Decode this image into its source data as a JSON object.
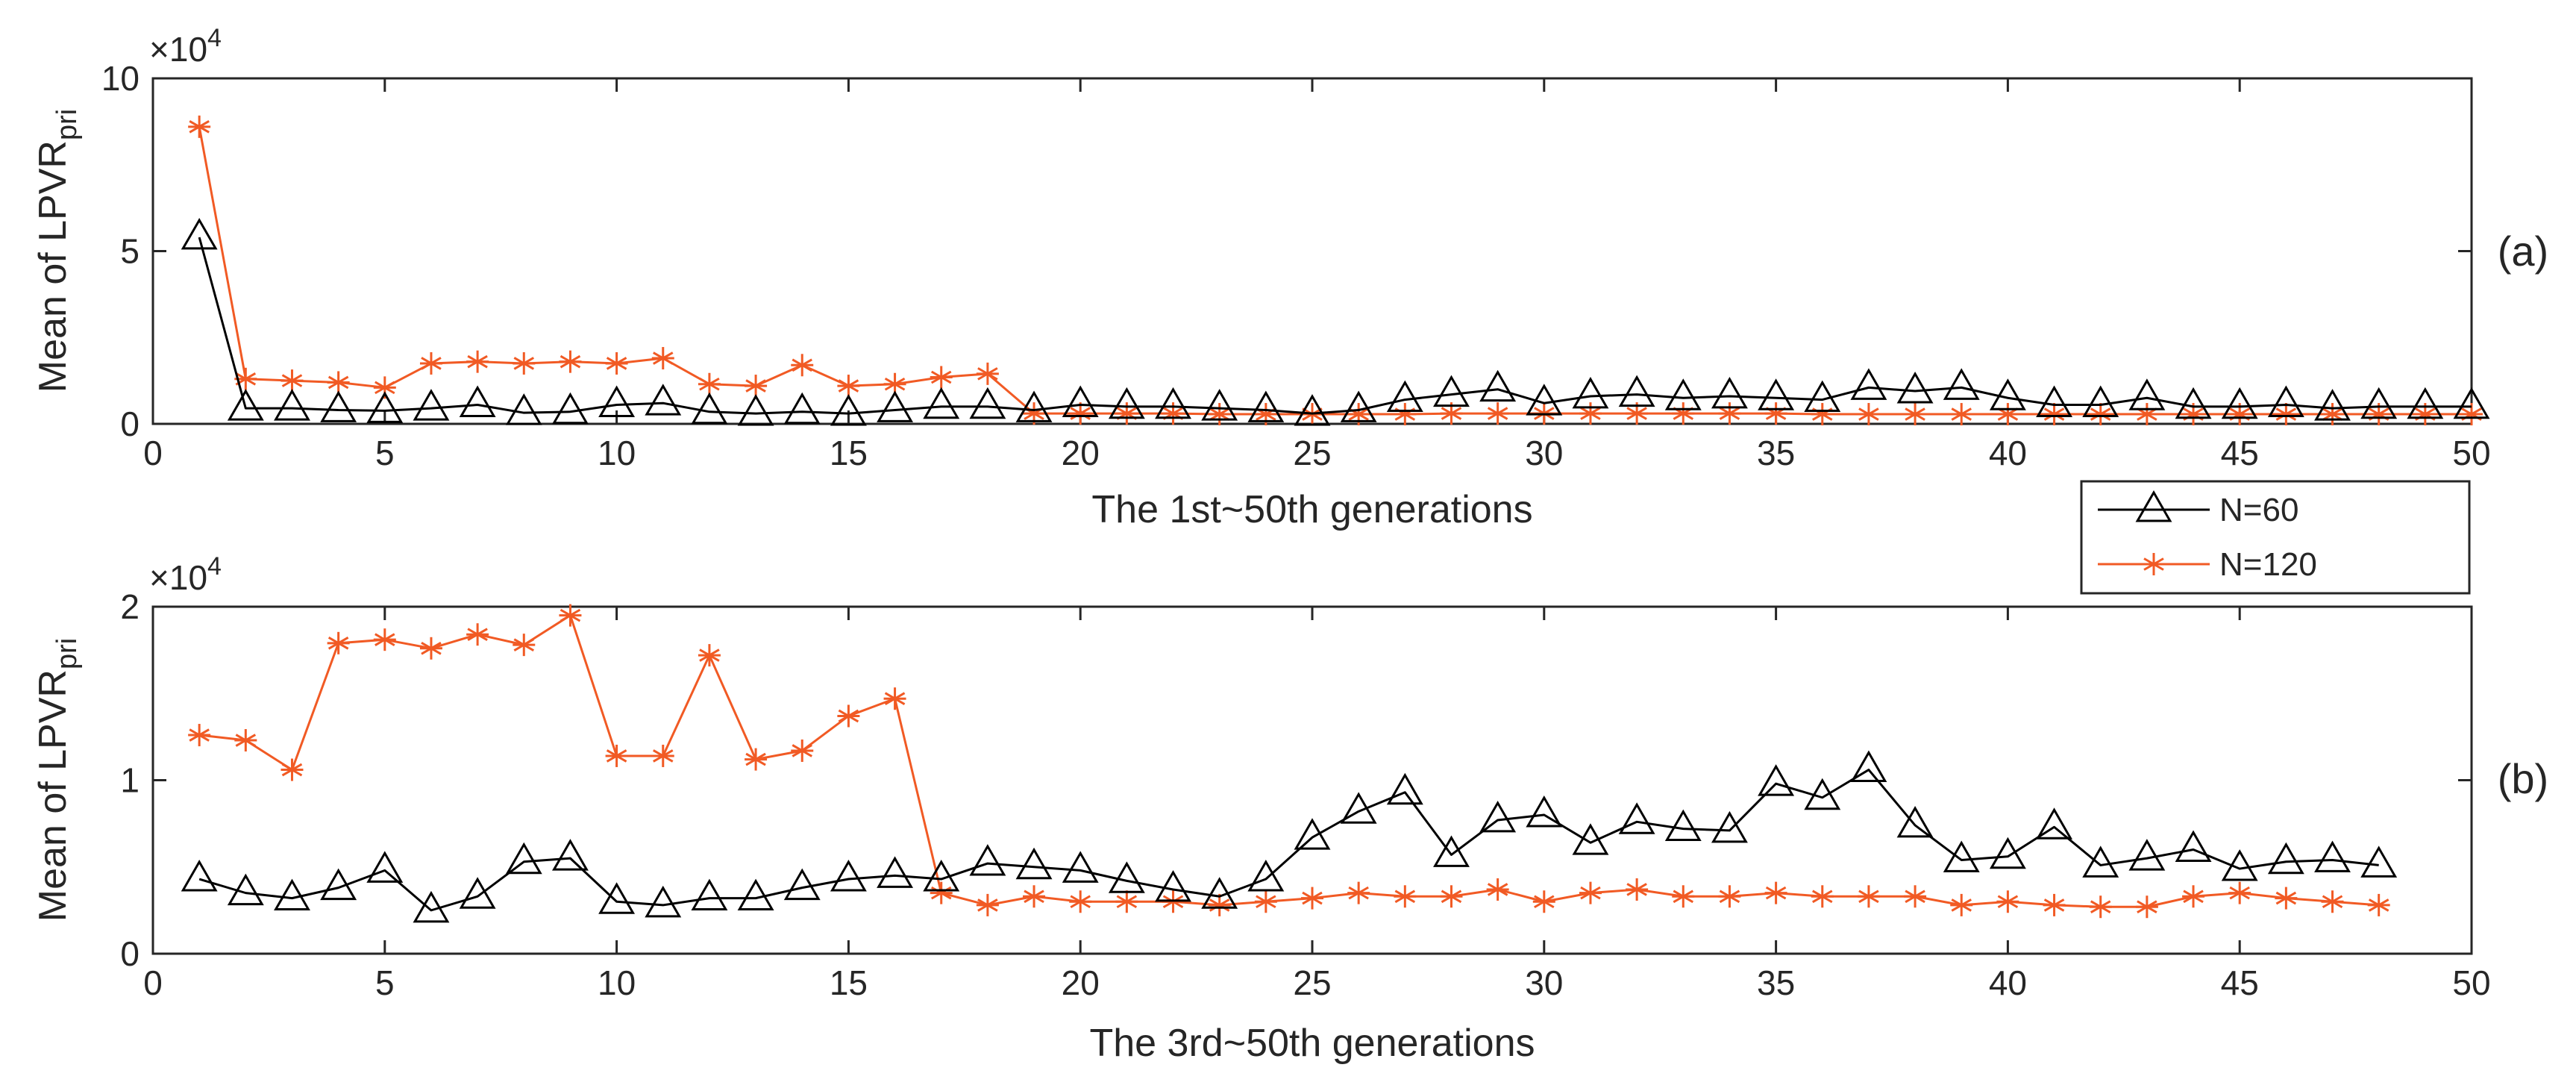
{
  "chart_data": [
    {
      "type": "line",
      "panel_label": "(a)",
      "xlabel": "The 1st~50th generations",
      "ylabel_main": "Mean of LPVR",
      "ylabel_sub": "pri",
      "scale_base": "×10",
      "scale_exp": "4",
      "xlim": [
        0,
        50
      ],
      "ylim": [
        0,
        10
      ],
      "xticks": [
        0,
        5,
        10,
        15,
        20,
        25,
        30,
        35,
        40,
        45,
        50
      ],
      "yticks": [
        0,
        5,
        10
      ],
      "series": [
        {
          "name": "N=60",
          "color": "#000000",
          "marker": "triangle",
          "x": [
            1,
            2,
            3,
            4,
            5,
            6,
            7,
            8,
            9,
            10,
            11,
            12,
            13,
            14,
            15,
            16,
            17,
            18,
            19,
            20,
            21,
            22,
            23,
            24,
            25,
            26,
            27,
            28,
            29,
            30,
            31,
            32,
            33,
            34,
            35,
            36,
            37,
            38,
            39,
            40,
            41,
            42,
            43,
            44,
            45,
            46,
            47,
            48,
            49,
            50
          ],
          "y": [
            5.4,
            0.45,
            0.45,
            0.4,
            0.38,
            0.45,
            0.55,
            0.32,
            0.35,
            0.55,
            0.6,
            0.35,
            0.3,
            0.35,
            0.3,
            0.4,
            0.5,
            0.5,
            0.4,
            0.55,
            0.5,
            0.5,
            0.45,
            0.4,
            0.3,
            0.4,
            0.7,
            0.85,
            1.0,
            0.6,
            0.8,
            0.85,
            0.75,
            0.8,
            0.75,
            0.7,
            1.05,
            0.95,
            1.05,
            0.75,
            0.55,
            0.55,
            0.75,
            0.5,
            0.5,
            0.55,
            0.45,
            0.5,
            0.5,
            0.5
          ]
        },
        {
          "name": "N=120",
          "color": "#F15A24",
          "marker": "asterisk",
          "x": [
            1,
            2,
            3,
            4,
            5,
            6,
            7,
            8,
            9,
            10,
            11,
            12,
            13,
            14,
            15,
            16,
            17,
            18,
            19,
            20,
            21,
            22,
            23,
            24,
            25,
            26,
            27,
            28,
            29,
            30,
            31,
            32,
            33,
            34,
            35,
            36,
            37,
            38,
            39,
            40,
            41,
            42,
            43,
            44,
            45,
            46,
            47,
            48,
            49,
            50
          ],
          "y": [
            8.6,
            1.3,
            1.25,
            1.2,
            1.05,
            1.75,
            1.8,
            1.75,
            1.8,
            1.75,
            1.9,
            1.15,
            1.1,
            1.7,
            1.1,
            1.15,
            1.35,
            1.45,
            0.3,
            0.3,
            0.3,
            0.3,
            0.28,
            0.28,
            0.28,
            0.28,
            0.28,
            0.3,
            0.3,
            0.3,
            0.3,
            0.3,
            0.3,
            0.3,
            0.3,
            0.28,
            0.28,
            0.28,
            0.28,
            0.28,
            0.28,
            0.28,
            0.28,
            0.28,
            0.28,
            0.28,
            0.28,
            0.28,
            0.28,
            0.28
          ]
        }
      ]
    },
    {
      "type": "line",
      "panel_label": "(b)",
      "xlabel": "The 3rd~50th generations",
      "ylabel_main": "Mean of LPVR",
      "ylabel_sub": "pri",
      "scale_base": "×10",
      "scale_exp": "4",
      "xlim": [
        0,
        50
      ],
      "ylim": [
        0,
        2
      ],
      "xticks": [
        0,
        5,
        10,
        15,
        20,
        25,
        30,
        35,
        40,
        45,
        50
      ],
      "yticks": [
        0,
        1,
        2
      ],
      "series": [
        {
          "name": "N=60",
          "color": "#000000",
          "marker": "triangle",
          "x": [
            1,
            2,
            3,
            4,
            5,
            6,
            7,
            8,
            9,
            10,
            11,
            12,
            13,
            14,
            15,
            16,
            17,
            18,
            19,
            20,
            21,
            22,
            23,
            24,
            25,
            26,
            27,
            28,
            29,
            30,
            31,
            32,
            33,
            34,
            35,
            36,
            37,
            38,
            39,
            40,
            41,
            42,
            43,
            44,
            45,
            46,
            47,
            48
          ],
          "y": [
            0.43,
            0.35,
            0.32,
            0.38,
            0.48,
            0.25,
            0.33,
            0.53,
            0.55,
            0.3,
            0.28,
            0.32,
            0.32,
            0.38,
            0.43,
            0.45,
            0.43,
            0.52,
            0.5,
            0.48,
            0.42,
            0.37,
            0.33,
            0.43,
            0.67,
            0.82,
            0.93,
            0.57,
            0.77,
            0.8,
            0.64,
            0.76,
            0.72,
            0.71,
            0.98,
            0.9,
            1.06,
            0.74,
            0.54,
            0.56,
            0.73,
            0.51,
            0.55,
            0.6,
            0.49,
            0.53,
            0.54,
            0.51
          ]
        },
        {
          "name": "N=120",
          "color": "#F15A24",
          "marker": "asterisk",
          "x": [
            1,
            2,
            3,
            4,
            5,
            6,
            7,
            8,
            9,
            10,
            11,
            12,
            13,
            14,
            15,
            16,
            17,
            18,
            19,
            20,
            21,
            22,
            23,
            24,
            25,
            26,
            27,
            28,
            29,
            30,
            31,
            32,
            33,
            34,
            35,
            36,
            37,
            38,
            39,
            40,
            41,
            42,
            43,
            44,
            45,
            46,
            47,
            48
          ],
          "y": [
            1.26,
            1.23,
            1.06,
            1.79,
            1.81,
            1.76,
            1.84,
            1.78,
            1.95,
            1.14,
            1.14,
            1.72,
            1.12,
            1.17,
            1.37,
            1.47,
            0.35,
            0.28,
            0.33,
            0.3,
            0.3,
            0.3,
            0.28,
            0.3,
            0.32,
            0.35,
            0.33,
            0.33,
            0.37,
            0.3,
            0.35,
            0.37,
            0.33,
            0.33,
            0.35,
            0.33,
            0.33,
            0.33,
            0.28,
            0.3,
            0.28,
            0.27,
            0.27,
            0.33,
            0.35,
            0.32,
            0.3,
            0.28
          ]
        }
      ]
    }
  ],
  "legend": {
    "location": "between-panels-right",
    "entries": [
      "N=60",
      "N=120"
    ]
  }
}
